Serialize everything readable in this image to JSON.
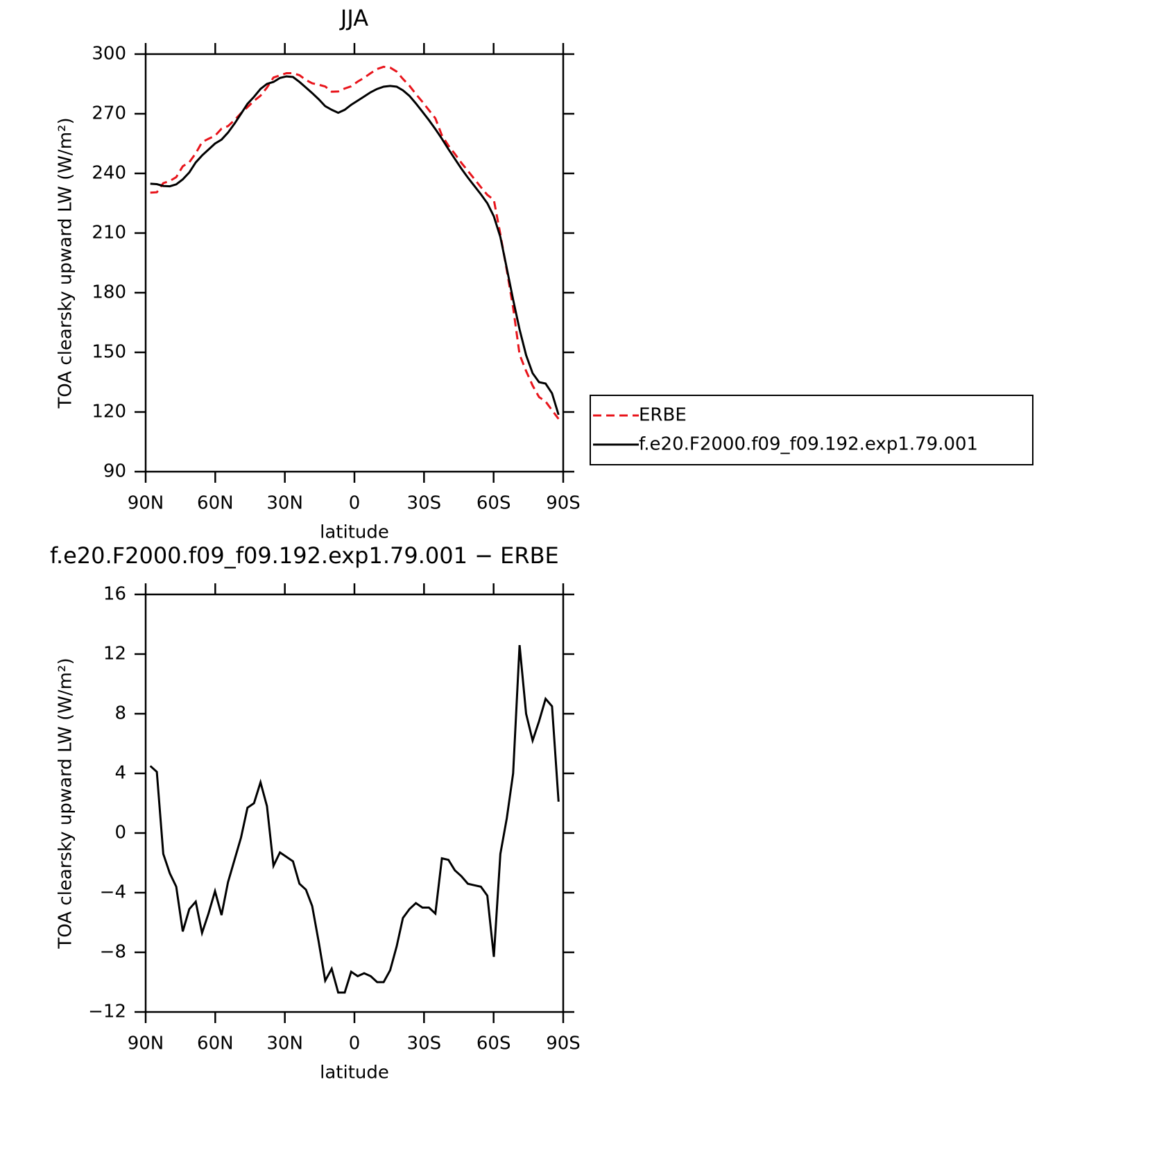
{
  "chart_data": [
    {
      "type": "line",
      "title": "JJA",
      "xlabel": "latitude",
      "ylabel": "TOA clearsky upward LW (W/m²)",
      "x": [
        88.0,
        85.2,
        82.4,
        79.6,
        76.8,
        74.0,
        71.2,
        68.4,
        65.7,
        62.9,
        60.1,
        57.3,
        54.5,
        51.7,
        48.9,
        46.1,
        43.3,
        40.5,
        37.7,
        34.9,
        32.1,
        29.3,
        26.5,
        23.7,
        20.9,
        18.2,
        15.4,
        12.6,
        9.8,
        7.0,
        4.2,
        1.4,
        -1.4,
        -4.2,
        -7.0,
        -9.8,
        -12.6,
        -15.4,
        -18.2,
        -20.9,
        -23.7,
        -26.5,
        -29.3,
        -32.1,
        -34.9,
        -37.7,
        -40.5,
        -43.3,
        -46.1,
        -48.9,
        -51.7,
        -54.5,
        -57.3,
        -60.1,
        -62.9,
        -65.7,
        -68.4,
        -71.2,
        -74.0,
        -76.8,
        -79.6,
        -82.4,
        -85.2,
        -88.0
      ],
      "xlim": [
        90,
        -90
      ],
      "xticks": [
        {
          "value": 90,
          "label": "90N"
        },
        {
          "value": 60,
          "label": "60N"
        },
        {
          "value": 30,
          "label": "30N"
        },
        0,
        {
          "value": -30,
          "label": "30S"
        },
        {
          "value": -60,
          "label": "60S"
        },
        {
          "value": -90,
          "label": "90S"
        }
      ],
      "ylim": [
        90,
        300
      ],
      "yticks": [
        90,
        120,
        150,
        180,
        210,
        240,
        270,
        300
      ],
      "legend": "right",
      "series": [
        {
          "name": "ERBE",
          "color": "#e8141b",
          "linestyle": "dashed",
          "values": [
            230.3,
            230.5,
            235.1,
            236.2,
            238.1,
            243.6,
            245.6,
            250.1,
            255.7,
            257.4,
            258.9,
            262.5,
            263.8,
            266.8,
            270.3,
            273.3,
            276.5,
            279.1,
            283.2,
            288.2,
            289.3,
            290.4,
            290.4,
            289.4,
            287,
            285.3,
            284.6,
            283.7,
            281.1,
            281.2,
            282.7,
            283.8,
            286.2,
            288.1,
            290.4,
            292.5,
            293.6,
            293.2,
            291.2,
            287.5,
            284.1,
            279.9,
            276,
            271.8,
            267.7,
            259.1,
            254,
            249.8,
            245.3,
            241.3,
            237.2,
            233.1,
            229.2,
            226.7,
            209.4,
            191.2,
            172.5,
            148.9,
            140.6,
            133.3,
            127.5,
            125.3,
            120.9,
            116.5
          ]
        },
        {
          "name": "f.e20.F2000.f09_f09.192.exp1.79.001",
          "color": "#000000",
          "linestyle": "solid",
          "values": [
            234.8,
            234.6,
            233.7,
            233.5,
            234.5,
            237,
            240.5,
            245.5,
            249,
            252,
            255,
            257,
            260.5,
            265,
            270,
            275,
            278.5,
            282.5,
            285,
            286,
            288,
            288.8,
            288.5,
            286,
            283.2,
            280.4,
            277.3,
            273.8,
            272,
            270.5,
            272,
            274.5,
            276.6,
            278.7,
            280.8,
            282.5,
            283.6,
            284,
            283.6,
            281.8,
            279,
            275.2,
            271,
            266.8,
            262.3,
            257.4,
            252.2,
            247.3,
            242.4,
            237.9,
            233.7,
            229.5,
            225,
            218.4,
            208,
            192.2,
            176.5,
            161.5,
            148.6,
            139.5,
            135,
            134.3,
            129.4,
            118.6
          ]
        }
      ]
    },
    {
      "type": "line",
      "title": "f.e20.F2000.f09_f09.192.exp1.79.001 − ERBE",
      "xlabel": "latitude",
      "ylabel": "TOA clearsky upward LW (W/m²)",
      "x": [
        88.0,
        85.2,
        82.4,
        79.6,
        76.8,
        74.0,
        71.2,
        68.4,
        65.7,
        62.9,
        60.1,
        57.3,
        54.5,
        51.7,
        48.9,
        46.1,
        43.3,
        40.5,
        37.7,
        34.9,
        32.1,
        29.3,
        26.5,
        23.7,
        20.9,
        18.2,
        15.4,
        12.6,
        9.8,
        7.0,
        4.2,
        1.4,
        -1.4,
        -4.2,
        -7.0,
        -9.8,
        -12.6,
        -15.4,
        -18.2,
        -20.9,
        -23.7,
        -26.5,
        -29.3,
        -32.1,
        -34.9,
        -37.7,
        -40.5,
        -43.3,
        -46.1,
        -48.9,
        -51.7,
        -54.5,
        -57.3,
        -60.1,
        -62.9,
        -65.7,
        -68.4,
        -71.2,
        -74.0,
        -76.8,
        -79.6,
        -82.4,
        -85.2,
        -88.0
      ],
      "xlim": [
        90,
        -90
      ],
      "xticks": [
        {
          "value": 90,
          "label": "90N"
        },
        {
          "value": 60,
          "label": "60N"
        },
        {
          "value": 30,
          "label": "30N"
        },
        0,
        {
          "value": -30,
          "label": "30S"
        },
        {
          "value": -60,
          "label": "60S"
        },
        {
          "value": -90,
          "label": "90S"
        }
      ],
      "ylim": [
        -12,
        16
      ],
      "yticks": [
        {
          "value": -12,
          "label": "−12"
        },
        {
          "value": -8,
          "label": "−8"
        },
        {
          "value": -4,
          "label": "−4"
        },
        0,
        4,
        8,
        12,
        16
      ],
      "series": [
        {
          "color": "#000000",
          "linestyle": "solid",
          "values": [
            4.5,
            4.1,
            -1.4,
            -2.7,
            -3.6,
            -6.6,
            -5.1,
            -4.6,
            -6.7,
            -5.4,
            -3.9,
            -5.5,
            -3.3,
            -1.8,
            -0.3,
            1.7,
            2.0,
            3.4,
            1.8,
            -2.2,
            -1.3,
            -1.6,
            -1.9,
            -3.4,
            -3.8,
            -4.9,
            -7.3,
            -9.9,
            -9.1,
            -10.7,
            -10.7,
            -9.3,
            -9.6,
            -9.4,
            -9.6,
            -10.0,
            -10.0,
            -9.2,
            -7.6,
            -5.7,
            -5.1,
            -4.7,
            -5.0,
            -5.0,
            -5.4,
            -1.7,
            -1.8,
            -2.5,
            -2.9,
            -3.4,
            -3.5,
            -3.6,
            -4.2,
            -8.3,
            -1.4,
            1.0,
            4.0,
            12.6,
            8.0,
            6.2,
            7.5,
            9.0,
            8.5,
            2.1
          ]
        }
      ]
    }
  ]
}
